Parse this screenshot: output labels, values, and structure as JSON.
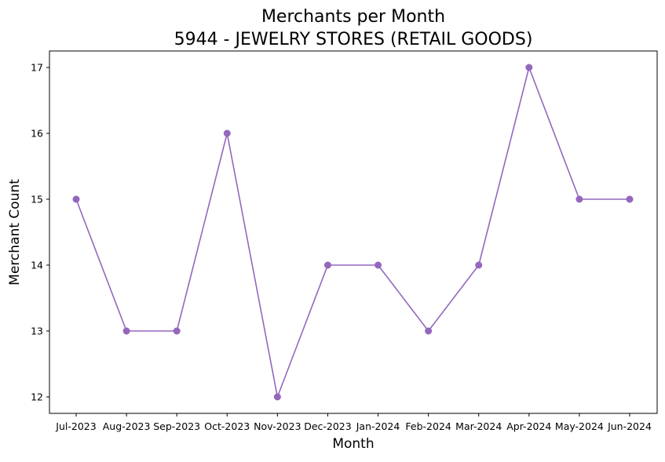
{
  "chart_data": {
    "type": "line",
    "title_lines": [
      "Merchants per Month",
      "5944 - JEWELRY STORES (RETAIL GOODS)"
    ],
    "xlabel": "Month",
    "ylabel": "Merchant Count",
    "categories": [
      "Jul-2023",
      "Aug-2023",
      "Sep-2023",
      "Oct-2023",
      "Nov-2023",
      "Dec-2023",
      "Jan-2024",
      "Feb-2024",
      "Mar-2024",
      "Apr-2024",
      "May-2024",
      "Jun-2024"
    ],
    "series": [
      {
        "values": [
          15,
          13,
          13,
          16,
          12,
          14,
          14,
          13,
          14,
          17,
          15,
          15
        ],
        "color": "#9467bd",
        "marker": "circle"
      }
    ],
    "ylim": [
      11.75,
      17.25
    ],
    "yticks": [
      12,
      13,
      14,
      15,
      16,
      17
    ],
    "grid": false,
    "legend": "none"
  }
}
